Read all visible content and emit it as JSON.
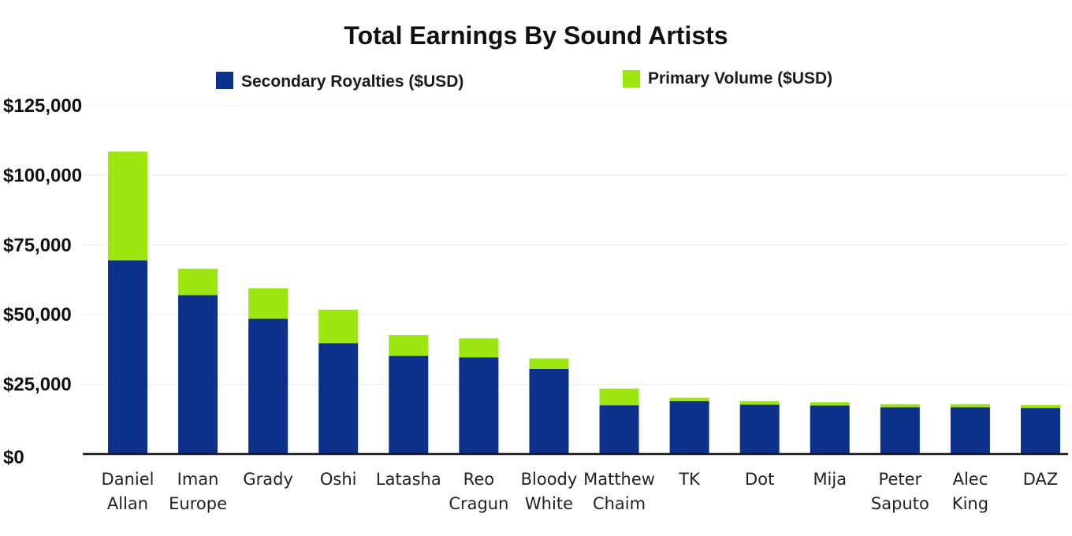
{
  "chart_data": {
    "type": "bar",
    "stacked": true,
    "title": "Total Earnings By Sound Artists",
    "xlabel": "",
    "ylabel": "",
    "ylim": [
      0,
      125000
    ],
    "y_ticks": [
      {
        "value": 0,
        "label": "$0"
      },
      {
        "value": 25000,
        "label": "$25,000"
      },
      {
        "value": 50000,
        "label": "$50,000"
      },
      {
        "value": 75000,
        "label": "$75,000"
      },
      {
        "value": 100000,
        "label": "$100,000"
      },
      {
        "value": 125000,
        "label": "$125,000"
      }
    ],
    "grid": true,
    "legend_position": "top",
    "categories": [
      [
        "Daniel",
        "Allan"
      ],
      [
        "Iman",
        "Europe"
      ],
      [
        "Grady"
      ],
      [
        "Oshi"
      ],
      [
        "Latasha"
      ],
      [
        "Reo",
        "Cragun"
      ],
      [
        "Bloody",
        "White"
      ],
      [
        "Matthew",
        "Chaim"
      ],
      [
        "TK"
      ],
      [
        "Dot"
      ],
      [
        "Mija"
      ],
      [
        "Peter",
        "Saputo"
      ],
      [
        "Alec",
        "King"
      ],
      [
        "DAZ"
      ]
    ],
    "series": [
      {
        "name": "Secondary Royalties ($USD)",
        "color": "#0c318b",
        "values": [
          69500,
          57000,
          48500,
          39800,
          35200,
          34700,
          30600,
          17500,
          19000,
          17700,
          17400,
          16800,
          16800,
          16500
        ]
      },
      {
        "name": "Primary Volume ($USD)",
        "color": "#9ee60f",
        "values": [
          39000,
          9500,
          11000,
          12000,
          7500,
          6800,
          3700,
          6000,
          1200,
          1300,
          1200,
          1100,
          1100,
          1100
        ]
      }
    ]
  }
}
